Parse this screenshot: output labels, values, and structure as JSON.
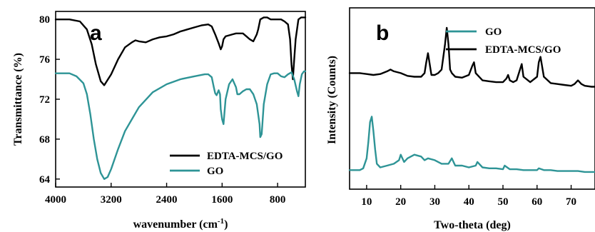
{
  "colors": {
    "black_series": "#000000",
    "teal_series": "#2e9496"
  },
  "chart_data": [
    {
      "type": "line",
      "panel_label": "a",
      "xlabel": "wavenumber (cm",
      "xlabel_sup": "-1",
      "xlabel_close": ")",
      "ylabel": "Transmittance (%)",
      "xlim": [
        4000,
        400
      ],
      "ylim": [
        63.2,
        80.8
      ],
      "x_ticks": [
        4000,
        3200,
        2400,
        1600,
        800
      ],
      "y_ticks": [
        64,
        68,
        72,
        76,
        80
      ],
      "x_tick_labels": [
        "4000",
        "3200",
        "2400",
        "1600",
        "800"
      ],
      "y_tick_labels": [
        "64",
        "68",
        "72",
        "76",
        "80"
      ],
      "legend_position": "bottom-right",
      "series": [
        {
          "name": "EDTA-MCS/GO",
          "color": "#000000",
          "x": [
            4000,
            3800,
            3650,
            3550,
            3480,
            3420,
            3350,
            3300,
            3200,
            3100,
            3000,
            2900,
            2850,
            2800,
            2700,
            2600,
            2500,
            2400,
            2300,
            2200,
            2100,
            2000,
            1900,
            1800,
            1750,
            1700,
            1650,
            1620,
            1600,
            1580,
            1550,
            1500,
            1450,
            1400,
            1380,
            1300,
            1250,
            1200,
            1150,
            1100,
            1080,
            1050,
            1000,
            950,
            900,
            850,
            800,
            750,
            700,
            650,
            620,
            600,
            580,
            560,
            540,
            500,
            460,
            420,
            400
          ],
          "y": [
            80.0,
            80.0,
            79.8,
            79.0,
            77.5,
            75.5,
            73.8,
            73.4,
            74.5,
            76.0,
            77.2,
            77.7,
            77.9,
            77.8,
            77.7,
            78.0,
            78.2,
            78.3,
            78.5,
            78.8,
            79.0,
            79.2,
            79.4,
            79.5,
            79.3,
            78.5,
            77.6,
            77.0,
            77.3,
            78.0,
            78.3,
            78.4,
            78.5,
            78.6,
            78.6,
            78.6,
            78.3,
            78.0,
            77.8,
            78.5,
            79.0,
            80.0,
            80.2,
            80.2,
            80.0,
            80.0,
            80.0,
            80.0,
            79.8,
            79.5,
            78.0,
            75.5,
            74.0,
            76.0,
            78.0,
            80.0,
            80.2,
            80.2,
            80.2
          ]
        },
        {
          "name": "GO",
          "color": "#2e9496",
          "x": [
            4000,
            3800,
            3700,
            3600,
            3550,
            3500,
            3450,
            3400,
            3350,
            3300,
            3250,
            3200,
            3100,
            3000,
            2900,
            2800,
            2600,
            2400,
            2200,
            2000,
            1850,
            1800,
            1750,
            1720,
            1700,
            1680,
            1650,
            1630,
            1620,
            1600,
            1580,
            1550,
            1500,
            1450,
            1400,
            1380,
            1350,
            1300,
            1250,
            1200,
            1150,
            1100,
            1060,
            1050,
            1030,
            1000,
            950,
            900,
            850,
            800,
            750,
            700,
            650,
            600,
            560,
            520,
            500,
            480,
            450,
            420,
            400
          ],
          "y": [
            74.6,
            74.6,
            74.3,
            73.6,
            72.5,
            70.5,
            68.0,
            66.0,
            64.6,
            64.0,
            64.2,
            65.0,
            67.0,
            68.8,
            70.0,
            71.2,
            72.7,
            73.5,
            74.0,
            74.3,
            74.5,
            74.5,
            74.2,
            73.2,
            72.6,
            72.4,
            72.9,
            72.5,
            71.0,
            70.0,
            69.5,
            72.0,
            73.5,
            74.0,
            73.2,
            72.5,
            72.5,
            72.8,
            73.0,
            73.0,
            72.5,
            71.5,
            69.5,
            68.2,
            68.5,
            71.5,
            73.5,
            74.5,
            74.6,
            74.6,
            74.3,
            74.2,
            74.5,
            74.7,
            74.0,
            72.8,
            72.3,
            73.5,
            74.5,
            74.8,
            74.8
          ]
        }
      ]
    },
    {
      "type": "line",
      "panel_label": "b",
      "xlabel": "Two-theta (deg)",
      "ylabel": "Intensity (Counts)",
      "xlim": [
        5,
        77
      ],
      "ylim": [
        0,
        100
      ],
      "x_ticks": [
        10,
        20,
        30,
        40,
        50,
        60,
        70
      ],
      "x_tick_labels": [
        "10",
        "20",
        "30",
        "40",
        "50",
        "60",
        "70"
      ],
      "legend_position": "top-center",
      "series": [
        {
          "name": "GO",
          "color": "#2e9496",
          "x": [
            5,
            8,
            9,
            10,
            10.5,
            11,
            11.5,
            12,
            12.5,
            13,
            14,
            16,
            18,
            19.5,
            20,
            21,
            22,
            24,
            26,
            27,
            28,
            30,
            32,
            34,
            35,
            36,
            38,
            40,
            42,
            42.5,
            44,
            46,
            48,
            50,
            50.5,
            52,
            54,
            56,
            58,
            60,
            60.5,
            62,
            64,
            66,
            68,
            70,
            72,
            74,
            76,
            77
          ],
          "y": [
            10.5,
            10.5,
            11.5,
            17,
            26,
            37,
            40,
            32,
            22,
            14,
            12,
            13,
            14,
            16,
            19,
            15,
            17,
            19,
            18,
            16,
            17,
            16,
            14,
            14,
            17,
            13,
            13,
            12,
            13,
            15,
            12,
            11.5,
            11.5,
            11,
            13,
            11,
            11,
            10.5,
            10.5,
            10.5,
            11.5,
            10.5,
            10.5,
            10,
            10,
            10,
            10,
            9.5,
            9.5,
            9.5
          ]
        },
        {
          "name": "EDTA-MCS/GO",
          "color": "#000000",
          "x": [
            5,
            8,
            10,
            12,
            14,
            16,
            17,
            18,
            20,
            22,
            24,
            26,
            27,
            27.5,
            28,
            28.5,
            29,
            30,
            31,
            32,
            33,
            33.5,
            34,
            34.5,
            35,
            36,
            38,
            40,
            41,
            41.5,
            42,
            44,
            46,
            48,
            50,
            51,
            51.5,
            52,
            53,
            54,
            55,
            55.5,
            56,
            58,
            60,
            60.5,
            61,
            62,
            64,
            66,
            68,
            70,
            71,
            72,
            73,
            74,
            76,
            77
          ],
          "y": [
            64,
            64,
            63.5,
            63,
            63.5,
            65,
            66,
            65,
            64,
            62.5,
            62,
            62,
            64,
            70,
            75,
            69,
            63,
            63,
            64,
            66,
            80,
            89,
            80,
            66,
            64,
            62,
            61.5,
            63,
            68,
            70,
            64,
            60,
            59.5,
            59,
            59,
            61,
            63,
            60,
            59,
            60,
            66,
            69,
            62,
            59,
            62,
            70,
            73,
            62,
            58.5,
            58,
            57.5,
            57,
            58,
            60,
            58,
            57,
            56.5,
            56.5
          ]
        }
      ]
    }
  ]
}
